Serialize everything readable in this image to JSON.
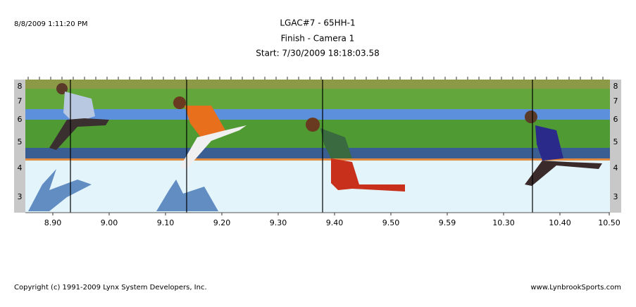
{
  "header": {
    "timestamp": "8/8/2009 1:11:20 PM",
    "title": "LGAC#7 - 65HH-1",
    "subtitle": "Finish - Camera 1",
    "start": "Start: 7/30/2009 18:18:03.58"
  },
  "lanes": [
    "8",
    "7",
    "6",
    "5",
    "4",
    "3"
  ],
  "time_labels": [
    "8.90",
    "9.00",
    "9.10",
    "9.20",
    "9.30",
    "9.40",
    "9.50",
    "9.59",
    "10.30",
    "10.40",
    "10.50"
  ],
  "footer": {
    "copyright": "Copyright (c) 1991-2009 Lynx System Developers, Inc.",
    "website": "www.LynbrookSports.com"
  }
}
